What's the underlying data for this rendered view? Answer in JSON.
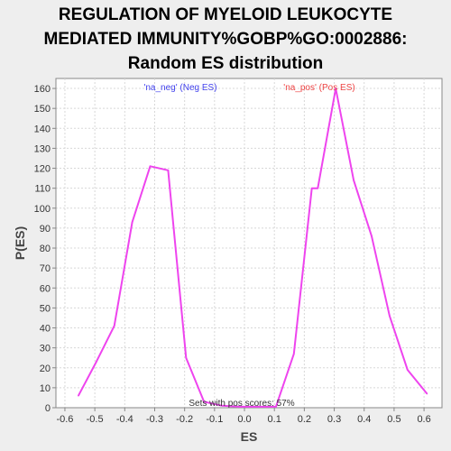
{
  "chart_data": {
    "type": "line",
    "title_lines": [
      "REGULATION OF MYELOID LEUKOCYTE",
      "MEDIATED IMMUNITY%GOBP%GO:0002886:",
      "Random ES distribution"
    ],
    "xlabel": "ES",
    "ylabel": "P(ES)",
    "xlim": [
      -0.63,
      0.66
    ],
    "ylim": [
      0,
      165
    ],
    "xticks": [
      -0.6,
      -0.5,
      -0.4,
      -0.3,
      -0.2,
      -0.1,
      0.0,
      0.1,
      0.2,
      0.3,
      0.4,
      0.5,
      0.6
    ],
    "xtick_labels": [
      "-0.6",
      "-0.5",
      "-0.4",
      "-0.3",
      "-0.2",
      "-0.1",
      "0.0",
      "0.1",
      "0.2",
      "0.3",
      "0.4",
      "0.5",
      "0.6"
    ],
    "yticks": [
      0,
      10,
      20,
      30,
      40,
      50,
      60,
      70,
      80,
      90,
      100,
      110,
      120,
      130,
      140,
      150,
      160
    ],
    "grid": true,
    "series": [
      {
        "color": "#ee44ee",
        "x": [
          -0.555,
          -0.495,
          -0.435,
          -0.375,
          -0.315,
          -0.255,
          -0.195,
          -0.135,
          -0.075,
          -0.015,
          0.045,
          0.105,
          0.165,
          0.225,
          0.245,
          0.305,
          0.365,
          0.425,
          0.485,
          0.545,
          0.61
        ],
        "y": [
          6,
          23,
          41,
          93,
          121,
          119,
          25,
          3,
          1,
          0.5,
          0.5,
          0.5,
          27,
          110,
          110,
          160,
          114,
          86,
          46,
          19,
          7
        ]
      }
    ],
    "annotations": {
      "neg_label": "'na_neg' (Neg ES)",
      "neg_color": "#4444ee",
      "pos_label": "'na_pos' (Pos ES)",
      "pos_color": "#ee4444",
      "footer": "Sets with pos scores: 57%"
    }
  }
}
